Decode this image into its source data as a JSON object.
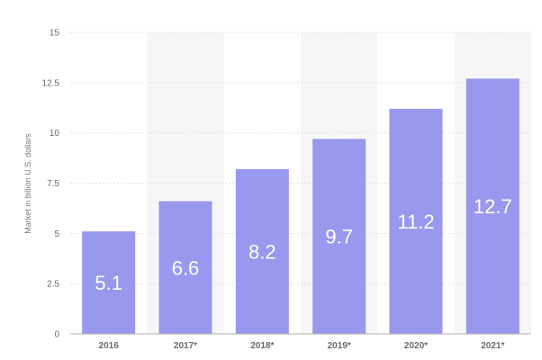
{
  "chart_data": {
    "type": "bar",
    "categories": [
      "2016",
      "2017*",
      "2018*",
      "2019*",
      "2020*",
      "2021*"
    ],
    "values": [
      5.1,
      6.6,
      8.2,
      9.7,
      11.2,
      12.7
    ],
    "value_labels": [
      "5.1",
      "6.6",
      "8.2",
      "9.7",
      "11.2",
      "12.7"
    ],
    "title": "",
    "xlabel": "",
    "ylabel": "Market in billion U.S. dollars",
    "ylim": [
      0,
      15
    ],
    "yticks": [
      0,
      2.5,
      5,
      7.5,
      10,
      12.5,
      15
    ],
    "ytick_labels": [
      "0",
      "2.5",
      "5",
      "7.5",
      "10",
      "12.5",
      "15"
    ],
    "grid": true,
    "legend": "none",
    "colors": {
      "bar": "#9898ee",
      "band": "#f6f6f6",
      "grid": "#e3e3e3",
      "axis": "#b0b0b0",
      "value_label": "#ffffff"
    }
  }
}
